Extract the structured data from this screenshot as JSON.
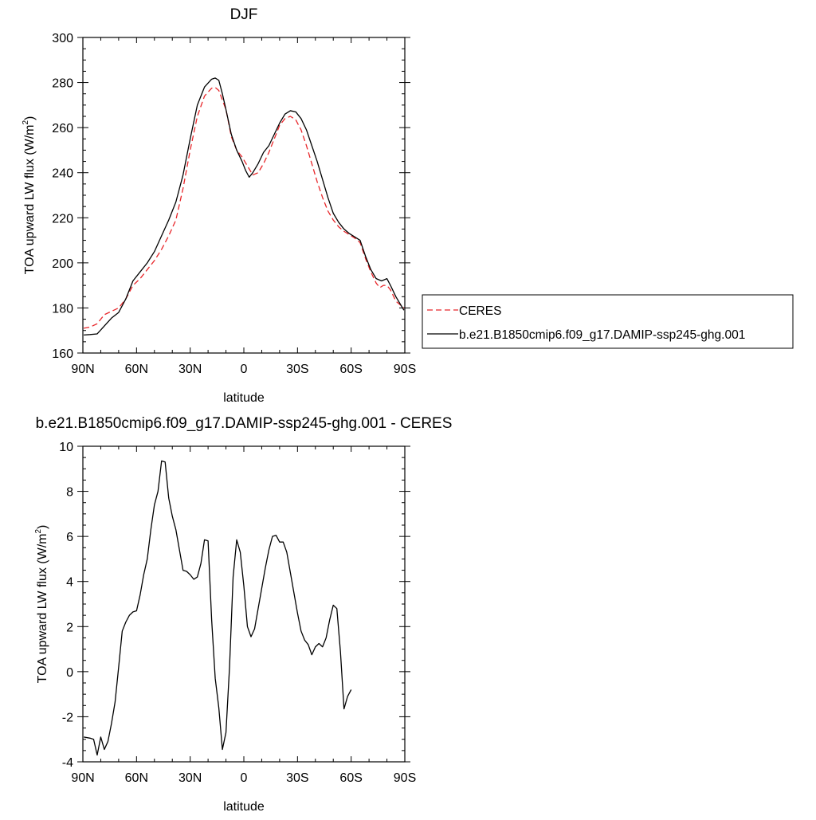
{
  "chart_data": [
    {
      "type": "line",
      "title": "DJF",
      "xlabel": "latitude",
      "ylabel": "TOA upward LW flux (W/m",
      "ylabel_sup": "2",
      "ylabel_close": ")",
      "xlim": [
        90,
        -90
      ],
      "ylim": [
        160,
        300
      ],
      "xticks": [
        {
          "v": 90,
          "label": "90N"
        },
        {
          "v": 60,
          "label": "60N"
        },
        {
          "v": 30,
          "label": "30N"
        },
        {
          "v": 0,
          "label": "0"
        },
        {
          "v": -30,
          "label": "30S"
        },
        {
          "v": -60,
          "label": "60S"
        },
        {
          "v": -90,
          "label": "90S"
        }
      ],
      "yticks": [
        160,
        180,
        200,
        220,
        240,
        260,
        280,
        300
      ],
      "legend_position": "right",
      "series": [
        {
          "name": "CERES",
          "color": "#e8262a",
          "dash": "dashed",
          "points": [
            [
              89.5,
              171
            ],
            [
              86,
              171.5
            ],
            [
              82,
              173
            ],
            [
              78,
              177
            ],
            [
              74,
              178.5
            ],
            [
              70,
              180
            ],
            [
              66,
              184
            ],
            [
              62,
              190
            ],
            [
              58,
              193
            ],
            [
              54,
              197
            ],
            [
              50,
              201
            ],
            [
              46,
              206
            ],
            [
              42,
              212
            ],
            [
              38,
              219
            ],
            [
              34,
              233
            ],
            [
              30,
              250
            ],
            [
              26,
              265
            ],
            [
              22,
              274
            ],
            [
              18,
              277.5
            ],
            [
              16,
              277.8
            ],
            [
              14,
              276.5
            ],
            [
              10,
              268
            ],
            [
              7,
              256
            ],
            [
              4,
              250
            ],
            [
              1,
              247
            ],
            [
              -2,
              243
            ],
            [
              -5,
              239
            ],
            [
              -8,
              240
            ],
            [
              -11,
              244
            ],
            [
              -14,
              249
            ],
            [
              -17,
              255
            ],
            [
              -20,
              261
            ],
            [
              -23,
              264
            ],
            [
              -26,
              265
            ],
            [
              -29,
              263.5
            ],
            [
              -32,
              259
            ],
            [
              -35,
              252
            ],
            [
              -38,
              244
            ],
            [
              -41,
              236
            ],
            [
              -44,
              229
            ],
            [
              -47,
              223
            ],
            [
              -50,
              219
            ],
            [
              -53,
              216
            ],
            [
              -56,
              214
            ],
            [
              -59,
              212.5
            ],
            [
              -62,
              211
            ],
            [
              -65,
              209
            ],
            [
              -68,
              202
            ],
            [
              -71,
              196
            ],
            [
              -74,
              191
            ],
            [
              -76,
              189
            ],
            [
              -78,
              190
            ],
            [
              -80,
              190
            ],
            [
              -82,
              188
            ],
            [
              -85,
              183
            ],
            [
              -89.5,
              180
            ]
          ]
        },
        {
          "name": "b.e21.B1850cmip6.f09_g17.DAMIP-ssp245-ghg.001",
          "color": "#000000",
          "dash": "solid",
          "points": [
            [
              89.5,
              168
            ],
            [
              86,
              168.2
            ],
            [
              82,
              168.5
            ],
            [
              78,
              172
            ],
            [
              74,
              175.5
            ],
            [
              70,
              178
            ],
            [
              66,
              184
            ],
            [
              62,
              192
            ],
            [
              58,
              196
            ],
            [
              54,
              200
            ],
            [
              50,
              205
            ],
            [
              46,
              212
            ],
            [
              42,
              219
            ],
            [
              38,
              227
            ],
            [
              34,
              239
            ],
            [
              30,
              255
            ],
            [
              26,
              270
            ],
            [
              22,
              278
            ],
            [
              18,
              281.5
            ],
            [
              16,
              282
            ],
            [
              14,
              281
            ],
            [
              12,
              275
            ],
            [
              10,
              268
            ],
            [
              7,
              257
            ],
            [
              4,
              250
            ],
            [
              1,
              245
            ],
            [
              -1,
              241
            ],
            [
              -3,
              238
            ],
            [
              -5,
              240
            ],
            [
              -8,
              244
            ],
            [
              -11,
              249
            ],
            [
              -14,
              252
            ],
            [
              -17,
              257
            ],
            [
              -20,
              262
            ],
            [
              -23,
              266
            ],
            [
              -26,
              267.5
            ],
            [
              -29,
              267
            ],
            [
              -32,
              264
            ],
            [
              -35,
              259
            ],
            [
              -38,
              252
            ],
            [
              -41,
              245
            ],
            [
              -44,
              237
            ],
            [
              -47,
              229
            ],
            [
              -50,
              222
            ],
            [
              -53,
              218
            ],
            [
              -56,
              215
            ],
            [
              -59,
              213
            ],
            [
              -62,
              211.5
            ],
            [
              -65,
              210
            ],
            [
              -68,
              203
            ],
            [
              -71,
              197
            ],
            [
              -74,
              193
            ],
            [
              -77,
              192
            ],
            [
              -80,
              193
            ],
            [
              -82,
              190
            ],
            [
              -85,
              185
            ],
            [
              -89.5,
              179
            ]
          ]
        }
      ]
    },
    {
      "type": "line",
      "title": "b.e21.B1850cmip6.f09_g17.DAMIP-ssp245-ghg.001 - CERES",
      "xlabel": "latitude",
      "ylabel": "TOA upward LW flux (W/m",
      "ylabel_sup": "2",
      "ylabel_close": ")",
      "xlim": [
        90,
        -90
      ],
      "ylim": [
        -4,
        10
      ],
      "xticks": [
        {
          "v": 90,
          "label": "90N"
        },
        {
          "v": 60,
          "label": "60N"
        },
        {
          "v": 30,
          "label": "30N"
        },
        {
          "v": 0,
          "label": "0"
        },
        {
          "v": -30,
          "label": "30S"
        },
        {
          "v": -60,
          "label": "60S"
        },
        {
          "v": -90,
          "label": "90S"
        }
      ],
      "yticks": [
        -4,
        -2,
        0,
        2,
        4,
        6,
        8,
        10
      ],
      "series": [
        {
          "color": "#000000",
          "dash": "solid",
          "points": [
            [
              89.5,
              -2.9
            ],
            [
              86,
              -2.95
            ],
            [
              84,
              -3
            ],
            [
              82,
              -3.7
            ],
            [
              80,
              -2.9
            ],
            [
              78,
              -3.45
            ],
            [
              76,
              -3.1
            ],
            [
              74,
              -2.3
            ],
            [
              72,
              -1.35
            ],
            [
              70,
              0.2
            ],
            [
              68,
              1.8
            ],
            [
              66,
              2.2
            ],
            [
              64,
              2.5
            ],
            [
              62,
              2.65
            ],
            [
              60,
              2.7
            ],
            [
              58,
              3.4
            ],
            [
              56,
              4.3
            ],
            [
              54,
              5
            ],
            [
              52,
              6.3
            ],
            [
              50,
              7.4
            ],
            [
              48,
              8
            ],
            [
              46,
              9.35
            ],
            [
              44,
              9.3
            ],
            [
              42,
              7.7
            ],
            [
              40,
              6.9
            ],
            [
              38,
              6.3
            ],
            [
              36,
              5.4
            ],
            [
              34,
              4.5
            ],
            [
              32,
              4.45
            ],
            [
              30,
              4.3
            ],
            [
              28,
              4.1
            ],
            [
              26,
              4.2
            ],
            [
              24,
              4.8
            ],
            [
              22,
              5.85
            ],
            [
              20,
              5.8
            ],
            [
              18,
              2.3
            ],
            [
              16,
              -0.3
            ],
            [
              14,
              -1.6
            ],
            [
              12,
              -3.45
            ],
            [
              10,
              -2.7
            ],
            [
              8,
              0.2
            ],
            [
              6,
              4.2
            ],
            [
              4,
              5.85
            ],
            [
              2,
              5.3
            ],
            [
              0,
              3.8
            ],
            [
              -2,
              2
            ],
            [
              -4,
              1.55
            ],
            [
              -6,
              1.9
            ],
            [
              -8,
              2.8
            ],
            [
              -10,
              3.7
            ],
            [
              -12,
              4.6
            ],
            [
              -14,
              5.4
            ],
            [
              -16,
              6
            ],
            [
              -18,
              6.05
            ],
            [
              -20,
              5.75
            ],
            [
              -22,
              5.75
            ],
            [
              -24,
              5.3
            ],
            [
              -26,
              4.4
            ],
            [
              -28,
              3.5
            ],
            [
              -30,
              2.6
            ],
            [
              -32,
              1.8
            ],
            [
              -34,
              1.4
            ],
            [
              -36,
              1.2
            ],
            [
              -38,
              0.75
            ],
            [
              -40,
              1.1
            ],
            [
              -42,
              1.25
            ],
            [
              -44,
              1.1
            ],
            [
              -46,
              1.5
            ],
            [
              -48,
              2.3
            ],
            [
              -50,
              2.95
            ],
            [
              -52,
              2.8
            ],
            [
              -54,
              0.9
            ],
            [
              -56,
              -1.65
            ],
            [
              -58,
              -1.1
            ],
            [
              -60,
              -0.8
            ]
          ]
        }
      ]
    }
  ]
}
